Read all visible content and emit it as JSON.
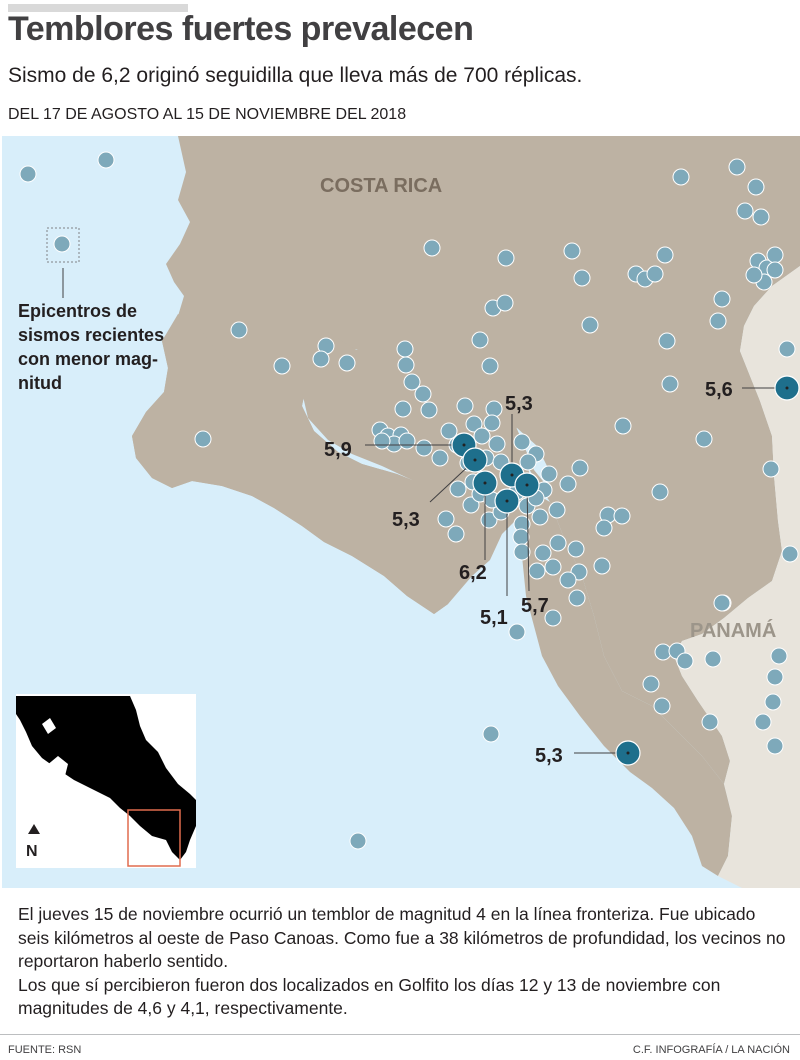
{
  "header": {
    "title": "Temblores fuertes prevalecen",
    "subtitle": "Sismo de 6,2 originó seguidilla que lleva más de 700 réplicas.",
    "date_range": "DEL 17 DE AGOSTO AL 15 DE NOVIEMBRE DEL 2018"
  },
  "map": {
    "country_labels": {
      "costa_rica": "COSTA RICA",
      "panama": "PANAMÁ"
    },
    "legend_note": [
      "Epicentros de",
      "sismos recientes",
      "con menor mag-",
      "nitud"
    ],
    "magnitudes": [
      "5,9",
      "5,3",
      "5,3",
      "6,2",
      "5,1",
      "5,7",
      "5,6",
      "5,3"
    ],
    "north_arrow": "N",
    "colors": {
      "sea": "#d8eefa",
      "costa_rica_land": "#bdb2a3",
      "panama_land": "#e8e4dc",
      "small_quake": "#7ea9ba",
      "strong_quake": "#1e6f8c",
      "inset_land": "#000000",
      "inset_box": "#e06c4e"
    }
  },
  "body": {
    "paragraph_1": "El jueves 15 de noviembre ocurrió un temblor de magnitud 4 en la línea fronteriza. Fue ubicado seis kilómetros al oeste de Paso Canoas. Como fue a 38 kilómetros de profundidad, los vecinos no reportaron haberlo sentido.",
    "paragraph_2": "Los que sí percibieron fueron dos localizados en Golfito los días 12 y 13 de noviembre con magnitudes de 4,6 y 4,1, respectivamente."
  },
  "footer": {
    "source": "FUENTE: RSN",
    "credit": "C.F. INFOGRAFÍA / LA NACIÓN"
  }
}
